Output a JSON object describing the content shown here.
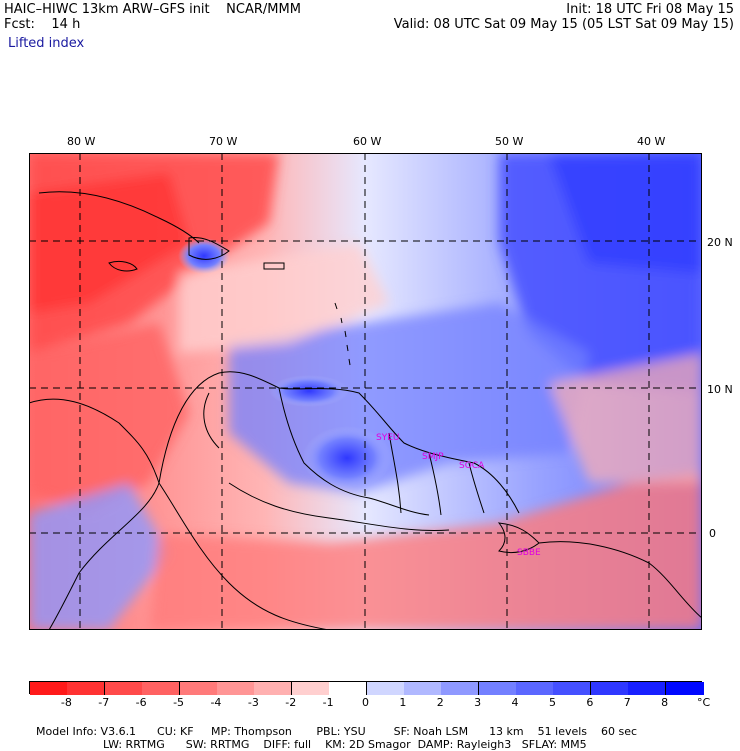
{
  "header": {
    "model_line": "HAIC–HIWC 13km ARW–GFS init    NCAR/MMM",
    "fcst_line": "Fcst:    14 h",
    "init_line": "Init: 18 UTC Fri 08 May 15",
    "valid_line": "Valid: 08 UTC Sat 09 May 15 (05 LST Sat 09 May 15)",
    "field": "Lifted index"
  },
  "map": {
    "longitude_labels": [
      "80 W",
      "70 W",
      "60 W",
      "50 W",
      "40 W"
    ],
    "latitude_labels": [
      "20 N",
      "10 N",
      "0"
    ],
    "stations": [
      "SYEU",
      "SMJP",
      "SOCA",
      "SBBE"
    ],
    "colors": {
      "station": "#e000e0",
      "grid": "#000000",
      "coast": "#000000"
    }
  },
  "colorbar": {
    "labels": [
      "-8",
      "-7",
      "-6",
      "-5",
      "-4",
      "-3",
      "-2",
      "-1",
      "0",
      "1",
      "2",
      "3",
      "4",
      "5",
      "6",
      "7",
      "8"
    ],
    "unit": "°C",
    "colors": [
      "#ff1a1a",
      "#ff3232",
      "#ff4a4a",
      "#ff6262",
      "#ff7a7a",
      "#ff9595",
      "#ffb0b0",
      "#ffcfcf",
      "#ffffff",
      "#d0d6ff",
      "#b0b8ff",
      "#8f99ff",
      "#7380ff",
      "#5b67ff",
      "#4550ff",
      "#2f38ff",
      "#1820ff",
      "#0008ff"
    ]
  },
  "footer": {
    "line1": [
      {
        "label": "Model Info: V3.6.1"
      },
      {
        "label": "CU: KF"
      },
      {
        "label": "MP: Thompson"
      },
      {
        "label": "PBL: YSU"
      },
      {
        "label": "SF: Noah LSM"
      },
      {
        "label": "13 km"
      },
      {
        "label": "51 levels"
      },
      {
        "label": "60 sec"
      }
    ],
    "line2": [
      {
        "label": "LW: RRTMG"
      },
      {
        "label": "SW: RRTMG"
      },
      {
        "label": "DIFF: full"
      },
      {
        "label": "KM: 2D Smagor"
      },
      {
        "label": "DAMP: Rayleigh3"
      },
      {
        "label": "SFLAY: MM5"
      }
    ]
  }
}
